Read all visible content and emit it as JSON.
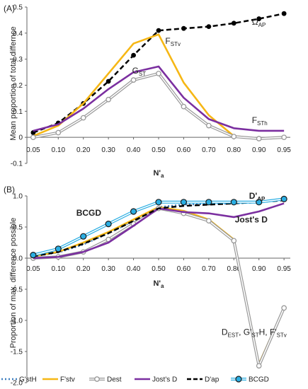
{
  "chart_data": [
    {
      "type": "line",
      "panel_label": "(A)",
      "title": "",
      "xlabel": "N'a",
      "ylabel": "Mean proportion of total differnce",
      "categories": [
        "0.05",
        "0.10",
        "0.20",
        "0.30",
        "0.40",
        "0.50",
        "0.60",
        "0.70",
        "0.80",
        "0.90",
        "0.95"
      ],
      "ylim": [
        -0.1,
        0.5
      ],
      "yticks": [
        "-0.1",
        "0",
        "0.1",
        "0.2",
        "0.3",
        "0.4",
        "0.5"
      ],
      "grid": false,
      "series": [
        {
          "name": "Ω_AP",
          "color": "#000000",
          "style": "dashed-marker",
          "values": [
            0.018,
            0.055,
            0.13,
            0.215,
            0.315,
            0.41,
            0.418,
            0.425,
            0.438,
            0.455,
            0.475
          ]
        },
        {
          "name": "F_STv",
          "color": "#f6b715",
          "style": "solid",
          "values": [
            0.005,
            0.045,
            0.13,
            0.245,
            0.36,
            0.395,
            0.21,
            0.085,
            0.005,
            -0.005,
            0
          ]
        },
        {
          "name": "G_ST",
          "color": "#999999",
          "style": "double-open",
          "values": [
            0,
            0.018,
            0.075,
            0.145,
            0.22,
            0.245,
            0.118,
            0.045,
            0.003,
            -0.005,
            0
          ]
        },
        {
          "name": "F_STh",
          "color": "#7b2fa0",
          "style": "solid",
          "values": [
            0.025,
            0.05,
            0.11,
            0.185,
            0.25,
            0.272,
            0.152,
            0.07,
            0.035,
            0.025,
            0.025
          ]
        }
      ],
      "annotations": [
        {
          "text": "Ω",
          "sub": "AP",
          "x": "0.90",
          "y": 0.465
        },
        {
          "text": "F",
          "sub": "STv",
          "x": "0.60",
          "y": 0.37
        },
        {
          "text": "G",
          "sub": "ST",
          "x": "0.40",
          "y": 0.255
        },
        {
          "text": "F",
          "sub": "STh",
          "x": "0.90",
          "y": 0.065
        }
      ]
    },
    {
      "type": "line",
      "panel_label": "(B)",
      "title": "",
      "xlabel": "N'a",
      "ylabel": "Proportion of max. difference possible",
      "categories": [
        "0.05",
        "0.10",
        "0.20",
        "0.30",
        "0.40",
        "0.50",
        "0.60",
        "0.70",
        "0.80",
        "0.90",
        "0.95"
      ],
      "ylim": [
        -2.0,
        1.0
      ],
      "yticks": [
        "-2.0",
        "-1.5",
        "-1.0",
        "-0.5",
        "0.0",
        "0.5",
        "1.0"
      ],
      "grid": false,
      "series": [
        {
          "name": "G'stH",
          "color": "#3d7ebf",
          "style": "dotted",
          "values": [
            0.03,
            0.09,
            0.22,
            0.4,
            0.6,
            0.82,
            0.86,
            0.87,
            0.88,
            0.9,
            0.95
          ]
        },
        {
          "name": "F'stv",
          "color": "#f6b715",
          "style": "solid",
          "values": [
            0.03,
            0.1,
            0.25,
            0.42,
            0.62,
            0.82,
            0.76,
            0.62,
            0.3,
            -1.7,
            -0.8
          ]
        },
        {
          "name": "Dest",
          "color": "#999999",
          "style": "double-open",
          "values": [
            0,
            0.02,
            0.1,
            0.3,
            0.55,
            0.8,
            0.72,
            0.6,
            0.28,
            -1.73,
            -0.8
          ]
        },
        {
          "name": "Jost's D",
          "color": "#7b2fa0",
          "style": "solid",
          "values": [
            0,
            0.02,
            0.1,
            0.25,
            0.52,
            0.8,
            0.74,
            0.72,
            0.66,
            0.75,
            0.88
          ]
        },
        {
          "name": "D'ap",
          "color": "#000000",
          "style": "dashed",
          "values": [
            0.03,
            0.1,
            0.23,
            0.4,
            0.6,
            0.8,
            0.84,
            0.86,
            0.88,
            0.9,
            0.93
          ]
        },
        {
          "name": "BCGD",
          "color": "#2aaee3",
          "style": "double-marker",
          "values": [
            0.05,
            0.15,
            0.35,
            0.55,
            0.75,
            0.9,
            0.9,
            0.9,
            0.9,
            0.9,
            0.95
          ]
        }
      ],
      "annotations": [
        {
          "text": "BCGD",
          "sub": "",
          "x": "0.20",
          "y": 0.68
        },
        {
          "text": "D'",
          "sub": "AP",
          "x": "0.90",
          "y": 1.0
        },
        {
          "text": "Jost's D",
          "sub": "",
          "x": "0.90",
          "y": 0.62
        },
        {
          "text": "D",
          "sub": "EST",
          "x": "0.70",
          "y": -1.2
        },
        {
          "text": ", G'",
          "sub": "ST",
          "x": "0.70",
          "y": -1.2
        },
        {
          "text": "H, F'",
          "sub": "STv",
          "x": "0.70",
          "y": -1.2
        }
      ],
      "legend": {
        "position": "bottom",
        "items": [
          "G'stH",
          "F'stv",
          "Dest",
          "Jost's D",
          "D'ap",
          "BCGD"
        ]
      }
    }
  ]
}
